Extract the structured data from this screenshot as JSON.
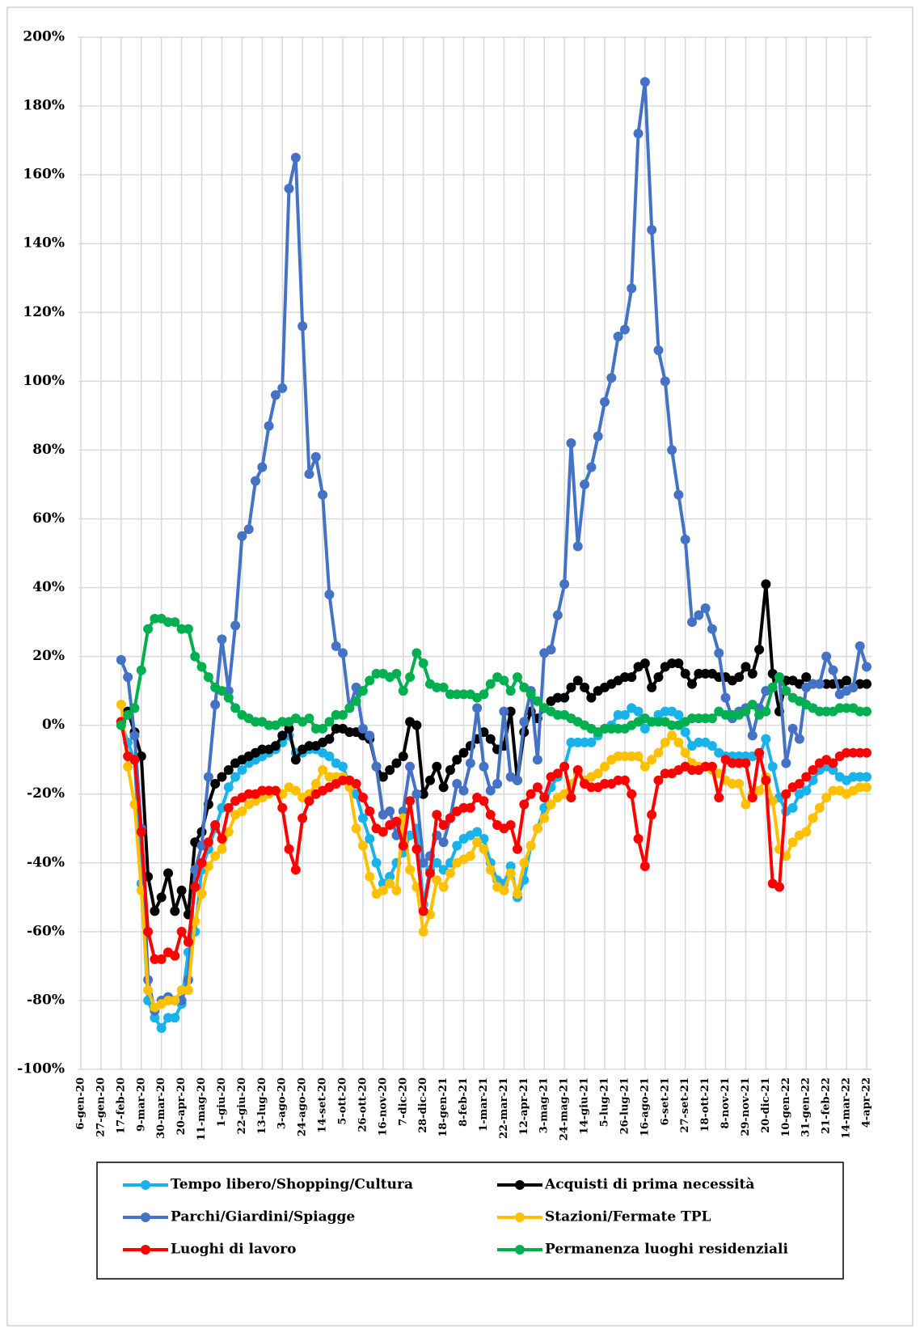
{
  "chart_data": {
    "type": "line",
    "categories": [
      "6-gen-20",
      null,
      null,
      "27-gen-20",
      null,
      null,
      "17-feb-20",
      null,
      null,
      "9-mar-20",
      null,
      null,
      "30-mar-20",
      null,
      null,
      "20-apr-20",
      null,
      null,
      "11-mag-20",
      null,
      null,
      "1-giu-20",
      null,
      null,
      "22-giu-20",
      null,
      null,
      "13-lug-20",
      null,
      null,
      "3-ago-20",
      null,
      null,
      "24-ago-20",
      null,
      null,
      "14-set-20",
      null,
      null,
      "5-ott-20",
      null,
      null,
      "26-ott-20",
      null,
      null,
      "16-nov-20",
      null,
      null,
      "7-dic-20",
      null,
      null,
      "28-dic-20",
      null,
      null,
      "18-gen-21",
      null,
      null,
      "8-feb-21",
      null,
      null,
      "1-mar-21",
      null,
      null,
      "22-mar-21",
      null,
      null,
      "12-apr-21",
      null,
      null,
      "3-mag-21",
      null,
      null,
      "24-mag-21",
      null,
      null,
      "14-giu-21",
      null,
      null,
      "5-lug-21",
      null,
      null,
      "26-lug-21",
      null,
      null,
      "16-ago-21",
      null,
      null,
      "6-set-21",
      null,
      null,
      "27-set-21",
      null,
      null,
      "18-ott-21",
      null,
      null,
      "8-nov-21",
      null,
      null,
      "29-nov-21",
      null,
      null,
      "20-dic-21",
      null,
      null,
      "10-gen-22",
      null,
      null,
      "31-gen-22",
      null,
      null,
      "21-feb-22",
      null,
      null,
      "14-mar-22",
      null,
      null,
      "4-apr-22"
    ],
    "series": [
      {
        "name": "Tempo libero/Shopping/Cultura",
        "color": "#1ab2ea",
        "values": [
          null,
          null,
          null,
          null,
          null,
          null,
          1,
          -5,
          -10,
          -46,
          -80,
          -85,
          -88,
          -85,
          -85,
          -81,
          -66,
          -60,
          -42,
          -36,
          -30,
          -24,
          -18,
          -15,
          -13,
          -11,
          -10,
          -9,
          -8,
          -7,
          -5,
          -3,
          -8,
          -8,
          -7,
          -7,
          -8,
          -9,
          -11,
          -12,
          -17,
          -20,
          -27,
          -33,
          -40,
          -46,
          -44,
          -40,
          -37,
          -32,
          -30,
          -52,
          -42,
          -40,
          -42,
          -40,
          -35,
          -33,
          -32,
          -31,
          -33,
          -40,
          -45,
          -46,
          -41,
          -50,
          -45,
          -35,
          -30,
          -24,
          -18,
          -15,
          -12,
          -5,
          -5,
          -5,
          -5,
          -3,
          -1,
          0,
          3,
          3,
          5,
          4,
          -1,
          1,
          3,
          4,
          4,
          3,
          -2,
          -6,
          -5,
          -5,
          -6,
          -8,
          -9,
          -9,
          -9,
          -9,
          -9,
          -9,
          -4,
          -12,
          -21,
          -25,
          -24,
          -20,
          -19,
          -16,
          -13,
          -12,
          -13,
          -15,
          -16,
          -15,
          -15,
          -15
        ]
      },
      {
        "name": "Acquisti di prima necessità",
        "color": "#000000",
        "values": [
          null,
          null,
          null,
          null,
          null,
          null,
          1,
          4,
          -2,
          -9,
          -44,
          -54,
          -50,
          -43,
          -54,
          -48,
          -55,
          -34,
          -31,
          -23,
          -17,
          -15,
          -13,
          -11,
          -10,
          -9,
          -8,
          -7,
          -7,
          -6,
          -3,
          -1,
          -10,
          -7,
          -6,
          -6,
          -5,
          -4,
          -1,
          -1,
          -2,
          -2,
          -3,
          -4,
          -12,
          -15,
          -13,
          -11,
          -9,
          1,
          0,
          -20,
          -16,
          -12,
          -18,
          -13,
          -10,
          -8,
          -6,
          -4,
          -2,
          -4,
          -7,
          -6,
          4,
          -16,
          -2,
          4,
          2,
          5,
          7,
          8,
          8,
          11,
          13,
          11,
          8,
          10,
          11,
          12,
          13,
          14,
          14,
          17,
          18,
          11,
          14,
          17,
          18,
          18,
          15,
          12,
          15,
          15,
          15,
          14,
          14,
          13,
          14,
          17,
          15,
          22,
          41,
          15,
          4,
          13,
          13,
          12,
          14,
          12,
          12,
          12,
          12,
          12,
          13,
          11,
          12,
          12
        ]
      },
      {
        "name": "Parchi/Giardini/Spiagge",
        "color": "#4472c4",
        "values": [
          null,
          null,
          null,
          null,
          null,
          null,
          19,
          14,
          -3,
          -30,
          -74,
          -83,
          -80,
          -79,
          -80,
          -80,
          -74,
          -42,
          -35,
          -15,
          6,
          25,
          10,
          29,
          55,
          57,
          71,
          75,
          87,
          96,
          98,
          156,
          165,
          116,
          73,
          78,
          67,
          38,
          23,
          21,
          5,
          11,
          -1,
          -3,
          -12,
          -26,
          -25,
          -32,
          -25,
          -12,
          -20,
          -40,
          -38,
          -32,
          -34,
          -27,
          -17,
          -19,
          -11,
          5,
          -12,
          -19,
          -17,
          4,
          -15,
          -16,
          1,
          10,
          -10,
          21,
          22,
          32,
          41,
          82,
          52,
          70,
          75,
          84,
          94,
          101,
          113,
          115,
          127,
          172,
          187,
          144,
          109,
          100,
          80,
          67,
          54,
          30,
          32,
          34,
          28,
          21,
          8,
          2,
          4,
          5,
          -3,
          5,
          10,
          11,
          14,
          -11,
          -1,
          -4,
          11,
          12,
          12,
          20,
          16,
          9,
          10,
          11,
          23,
          17
        ]
      },
      {
        "name": "Stazioni/Fermate TPL",
        "color": "#ffc000",
        "values": [
          null,
          null,
          null,
          null,
          null,
          null,
          6,
          -12,
          -23,
          -48,
          -77,
          -82,
          -81,
          -80,
          -80,
          -77,
          -77,
          -57,
          -49,
          -41,
          -38,
          -36,
          -31,
          -26,
          -25,
          -23,
          -22,
          -21,
          -20,
          -19,
          -20,
          -18,
          -19,
          -21,
          -20,
          -17,
          -13,
          -15,
          -15,
          -15,
          -18,
          -30,
          -35,
          -44,
          -49,
          -48,
          -46,
          -48,
          -27,
          -42,
          -47,
          -60,
          -55,
          -45,
          -47,
          -43,
          -40,
          -39,
          -38,
          -34,
          -36,
          -42,
          -47,
          -48,
          -43,
          -49,
          -40,
          -35,
          -30,
          -27,
          -23,
          -21,
          -20,
          -17,
          -14,
          -16,
          -15,
          -14,
          -12,
          -10,
          -9,
          -9,
          -9,
          -9,
          -12,
          -10,
          -8,
          -5,
          -3,
          -5,
          -8,
          -11,
          -12,
          -12,
          -13,
          -14,
          -16,
          -17,
          -17,
          -23,
          -20,
          -19,
          -15,
          -22,
          -36,
          -38,
          -34,
          -32,
          -31,
          -27,
          -24,
          -21,
          -19,
          -19,
          -20,
          -19,
          -18,
          -18
        ]
      },
      {
        "name": "Luoghi di lavoro",
        "color": "#ff0000",
        "values": [
          null,
          null,
          null,
          null,
          null,
          null,
          1,
          -9,
          -10,
          -31,
          -60,
          -68,
          -68,
          -66,
          -67,
          -60,
          -63,
          -47,
          -40,
          -34,
          -29,
          -33,
          -24,
          -22,
          -21,
          -20,
          -20,
          -19,
          -19,
          -19,
          -24,
          -36,
          -42,
          -27,
          -22,
          -20,
          -19,
          -18,
          -17,
          -16,
          -16,
          -17,
          -21,
          -25,
          -30,
          -31,
          -29,
          -28,
          -35,
          -22,
          -36,
          -54,
          -43,
          -26,
          -29,
          -27,
          -25,
          -24,
          -24,
          -21,
          -22,
          -26,
          -29,
          -30,
          -29,
          -36,
          -23,
          -20,
          -18,
          -21,
          -15,
          -14,
          -12,
          -21,
          -13,
          -17,
          -18,
          -18,
          -17,
          -17,
          -16,
          -16,
          -20,
          -33,
          -41,
          -26,
          -16,
          -14,
          -14,
          -13,
          -12,
          -13,
          -13,
          -12,
          -12,
          -21,
          -10,
          -11,
          -11,
          -11,
          -21,
          -8,
          -16,
          -46,
          -47,
          -20,
          -18,
          -17,
          -15,
          -13,
          -11,
          -10,
          -11,
          -9,
          -8,
          -8,
          -8,
          -8
        ]
      },
      {
        "name": "Permanenza luoghi residenziali",
        "color": "#00b050",
        "values": [
          null,
          null,
          null,
          null,
          null,
          null,
          0,
          3,
          5,
          16,
          28,
          31,
          31,
          30,
          30,
          28,
          28,
          20,
          17,
          14,
          11,
          10,
          8,
          5,
          3,
          2,
          1,
          1,
          0,
          0,
          1,
          1,
          2,
          1,
          2,
          -1,
          -1,
          1,
          3,
          3,
          5,
          7,
          10,
          13,
          15,
          15,
          14,
          15,
          10,
          14,
          21,
          18,
          12,
          11,
          11,
          9,
          9,
          9,
          9,
          8,
          9,
          12,
          14,
          13,
          10,
          14,
          11,
          9,
          7,
          5,
          4,
          3,
          3,
          2,
          1,
          0,
          -1,
          -2,
          -1,
          -1,
          -1,
          -1,
          0,
          1,
          2,
          1,
          1,
          1,
          0,
          0,
          1,
          2,
          2,
          2,
          2,
          4,
          3,
          3,
          3,
          4,
          6,
          3,
          4,
          11,
          14,
          10,
          8,
          7,
          6,
          5,
          4,
          4,
          4,
          5,
          5,
          5,
          4,
          4
        ]
      }
    ],
    "ylim": [
      -100,
      200
    ],
    "yticks": [
      {
        "value": -100,
        "label": "-100%"
      },
      {
        "value": -80,
        "label": "-80%"
      },
      {
        "value": -60,
        "label": "-60%"
      },
      {
        "value": -40,
        "label": "-40%"
      },
      {
        "value": -20,
        "label": "-20%"
      },
      {
        "value": 0,
        "label": "0%"
      },
      {
        "value": 20,
        "label": "20%"
      },
      {
        "value": 40,
        "label": "40%"
      },
      {
        "value": 60,
        "label": "60%"
      },
      {
        "value": 80,
        "label": "80%"
      },
      {
        "value": 100,
        "label": "100%"
      },
      {
        "value": 120,
        "label": "120%"
      },
      {
        "value": 140,
        "label": "140%"
      },
      {
        "value": 160,
        "label": "160%"
      },
      {
        "value": 180,
        "label": "180%"
      },
      {
        "value": 200,
        "label": "200%"
      }
    ],
    "grid": true,
    "legend": "bottom"
  }
}
